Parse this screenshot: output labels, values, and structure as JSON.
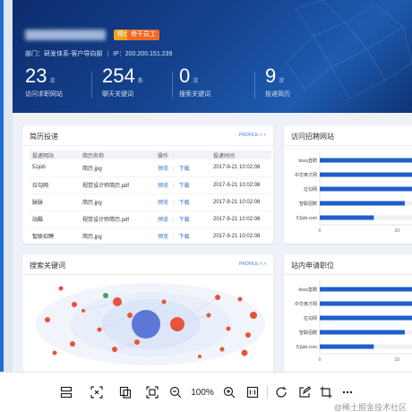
{
  "colors": {
    "accent": "#1f5fc8",
    "hero_dark": "#0d2c6e",
    "bubble_red": "#e8533a",
    "bubble_center": "#5b78d6",
    "bubble_green": "#3ca36a"
  },
  "header": {
    "badge_primary": "精仕",
    "badge_secondary": "骨干员工",
    "department": "部门：研发体系-客户导向部",
    "ip": "IP：200.200.151.239",
    "stats": [
      {
        "value": "23",
        "unit": "次",
        "label": "访问求职网站"
      },
      {
        "value": "254",
        "unit": "条",
        "label": "聊天关键词"
      },
      {
        "value": "0",
        "unit": "次",
        "label": "搜索关键词"
      },
      {
        "value": "9",
        "unit": "次",
        "label": "投递简历"
      }
    ]
  },
  "resume_panel": {
    "title": "简历投递",
    "more": "PROFILE > >",
    "columns": [
      "投递网站",
      "简历名称",
      "操作",
      "投递时间"
    ],
    "rows": [
      {
        "site": "51job",
        "file": "简历.jpg",
        "preview": "预览",
        "download": "下载",
        "time": "2017-9-21 10:02:08"
      },
      {
        "site": "拉勾网",
        "file": "视觉设计师简历.pdf",
        "preview": "预览",
        "download": "下载",
        "time": "2017-9-21 10:02:08"
      },
      {
        "site": "脉脉",
        "file": "简历.jpg",
        "preview": "预览",
        "download": "下载",
        "time": "2017-9-21 10:02:08"
      },
      {
        "site": "站酷",
        "file": "视觉设计师简历.pdf",
        "preview": "预览",
        "download": "下载",
        "time": "2017-9-21 10:02:08"
      },
      {
        "site": "智联招聘",
        "file": "简历.jpg",
        "preview": "预览",
        "download": "下载",
        "time": "2017-9-21 10:02:08"
      }
    ]
  },
  "keyword_panel": {
    "title": "搜索关键词",
    "more": "PROFILE > >"
  },
  "sites_panel": {
    "title": "访问招聘网站"
  },
  "internal_panel": {
    "title": "站内申请职位"
  },
  "chart_data": [
    {
      "type": "bar",
      "orientation": "horizontal",
      "categories": [
        "boss直聘",
        "中华英才网",
        "拉勾网",
        "智联招聘",
        "51job.com"
      ],
      "values": [
        15,
        12,
        14,
        11,
        7
      ],
      "xticks": [
        "0",
        "10"
      ],
      "xlim": [
        0,
        16
      ]
    },
    {
      "type": "bar",
      "orientation": "horizontal",
      "categories": [
        "boss直聘",
        "中华英才网",
        "拉勾网",
        "智联招聘",
        "51job.com"
      ],
      "values": [
        15,
        12,
        14,
        11,
        7
      ],
      "xticks": [
        "0",
        "10"
      ],
      "xlim": [
        0,
        16
      ]
    }
  ],
  "toolbar": {
    "zoom": "100%",
    "watermark": "@稀土掘金技术社区",
    "icons": [
      "layout-icon",
      "crop-screen-icon",
      "copy-text-icon",
      "fit-screen-icon",
      "zoom-out-icon",
      "zoom-in-icon",
      "actual-size-icon",
      "rotate-icon",
      "edit-icon",
      "crop-icon",
      "more-icon"
    ]
  }
}
